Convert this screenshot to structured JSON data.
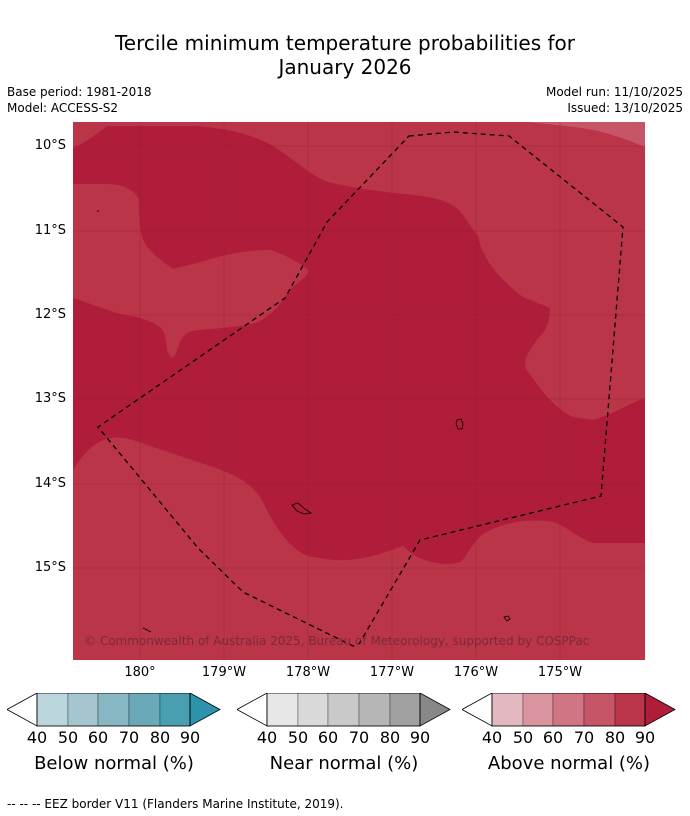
{
  "title_line1": "Tercile minimum temperature probabilities for",
  "title_line2": "January 2026",
  "meta": {
    "base_period": "Base period: 1981-2018",
    "model": "Model: ACCESS-S2",
    "model_run": "Model run: 11/10/2025",
    "issued": "Issued: 13/10/2025"
  },
  "lat_labels": [
    "10°S",
    "11°S",
    "12°S",
    "13°S",
    "14°S",
    "15°S"
  ],
  "lon_labels": [
    "180°",
    "179°W",
    "178°W",
    "177°W",
    "176°W",
    "175°W"
  ],
  "credit": "© Commonwealth of Australia 2025, Bureau of Meteorology, supported by COSPPac",
  "colorbars": [
    {
      "title": "Below normal (%)",
      "ticks": [
        "40",
        "50",
        "60",
        "70",
        "80",
        "90"
      ],
      "colors": [
        "#ffffff",
        "#bcd6de",
        "#a5c6cf",
        "#88b7c4",
        "#6aa9b7",
        "#4a9eb1",
        "#2c93ab"
      ]
    },
    {
      "title": "Near normal (%)",
      "ticks": [
        "40",
        "50",
        "60",
        "70",
        "80",
        "90"
      ],
      "colors": [
        "#ffffff",
        "#e6e6e6",
        "#d9d9d9",
        "#c9c9c9",
        "#b6b6b6",
        "#a0a0a0",
        "#888888"
      ]
    },
    {
      "title": "Above normal (%)",
      "ticks": [
        "40",
        "50",
        "60",
        "70",
        "80",
        "90"
      ],
      "colors": [
        "#ffffff",
        "#e3b8c0",
        "#d9949f",
        "#cf7583",
        "#c65667",
        "#bb3549",
        "#b01d3a"
      ]
    }
  ],
  "map_colors": {
    "class80": "#bb3549",
    "class90": "#b01d3a",
    "class70": "#c65667"
  },
  "footer": "--  --  -- EEZ border V11 (Flanders Marine Institute, 2019)."
}
